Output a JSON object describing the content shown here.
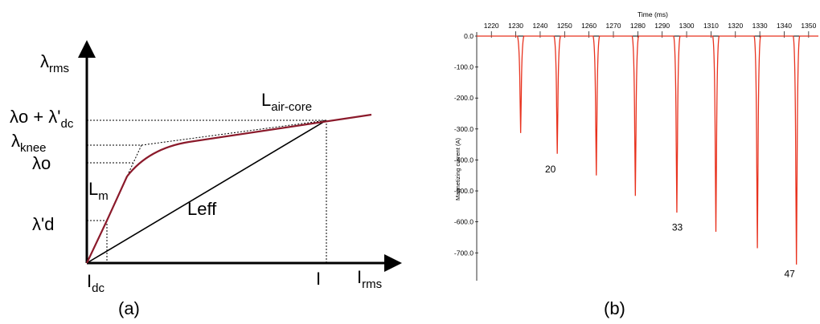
{
  "panel_a": {
    "caption": "(a)",
    "y_axis": {
      "symbol": "λ",
      "sub": "rms"
    },
    "x_axis": {
      "symbol": "I",
      "sub": "rms"
    },
    "curve_color": "#8b1a2b",
    "labels": {
      "l_air_core": {
        "main": "L",
        "sub": "air-core"
      },
      "lo_plus_ld": {
        "main": "λo + λ'",
        "sub": "dc"
      },
      "lknee": {
        "main": "λ",
        "sub": "knee"
      },
      "lo": "λo",
      "ld": "λ'd",
      "lm": {
        "main": "L",
        "sub": "m"
      },
      "leff": "Leff",
      "idc": {
        "main": "I",
        "sub": "dc"
      },
      "i": "I"
    }
  },
  "panel_b": {
    "caption": "(b)",
    "x_axis_title": "Time (ms)",
    "y_axis_title": "Magnetizing current (A)",
    "trace_color": "#e8321e",
    "x_ticks": [
      1220,
      1230,
      1240,
      1250,
      1260,
      1270,
      1280,
      1290,
      1300,
      1310,
      1320,
      1330,
      1340,
      1350
    ],
    "y_ticks": [
      "0.0",
      "-100.0",
      "-200.0",
      "-300.0",
      "-400.0",
      "-500.0",
      "-600.0",
      "-700.0"
    ],
    "annotations": [
      "20",
      "33",
      "47"
    ]
  },
  "chart_data": {
    "type": "line",
    "xlabel": "Time (ms)",
    "ylabel": "Magnetizing current (A)",
    "xlim": [
      1214,
      1354
    ],
    "ylim": [
      -790,
      0
    ],
    "pulses": [
      {
        "t": 1232,
        "peak": -313
      },
      {
        "t": 1247,
        "peak": -380
      },
      {
        "t": 1263,
        "peak": -450
      },
      {
        "t": 1279,
        "peak": -516
      },
      {
        "t": 1296,
        "peak": -570
      },
      {
        "t": 1312,
        "peak": -632
      },
      {
        "t": 1329,
        "peak": -685
      },
      {
        "t": 1345,
        "peak": -738
      }
    ],
    "annotations": [
      {
        "text": "20",
        "x": 1242,
        "y": -440
      },
      {
        "text": "33",
        "x": 1294,
        "y": -628
      },
      {
        "text": "47",
        "x": 1340,
        "y": -778
      }
    ]
  }
}
